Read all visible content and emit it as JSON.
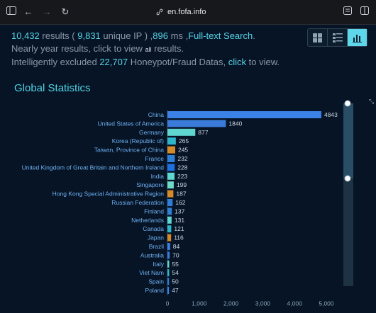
{
  "browser": {
    "url": "en.fofa.info"
  },
  "summary": {
    "results_count": "10,432",
    "results_label": "results (",
    "unique_ip_count": "9,831",
    "unique_ip_label": "unique IP ) ,",
    "time_ms": "896",
    "time_label": "ms ,",
    "search_mode": "Full-text Search",
    "line2_prefix": "Nearly year results, click to view",
    "line2_all": "all",
    "line2_suffix": "results.",
    "line3_prefix": "Intelligently excluded",
    "excluded_count": "22,707",
    "line3_middle": "Honeypot/Fraud Datas,",
    "line3_click": "click",
    "line3_suffix": "to view."
  },
  "section_title": "Global Statistics",
  "chart_data": {
    "type": "bar",
    "orientation": "horizontal",
    "categories": [
      "China",
      "United States of America",
      "Germany",
      "Korea (Republic of)",
      "Taiwan, Province of China",
      "France",
      "United Kingdom of Great Britain and Northern Ireland",
      "India",
      "Singapore",
      "Hong Kong Special Administrative Region",
      "Russian Federation",
      "Finland",
      "Netherlands",
      "Canada",
      "Japan",
      "Brazil",
      "Australia",
      "Italy",
      "Viet Nam",
      "Spain",
      "Poland"
    ],
    "values": [
      4843,
      1840,
      877,
      265,
      245,
      232,
      228,
      223,
      199,
      187,
      162,
      137,
      131,
      121,
      116,
      84,
      70,
      55,
      54,
      50,
      47
    ],
    "xlim": [
      0,
      5000
    ],
    "xticks": [
      "0",
      "1,000",
      "2,000",
      "3,000",
      "4,000",
      "5,000"
    ],
    "colors": [
      "#3a82e8",
      "#3a7ad9",
      "#5fd6cf",
      "#2fb5c9",
      "#d48a2a",
      "#2e7fd6",
      "#1f6fe0",
      "#5fd6cf",
      "#6fd8c8",
      "#d48a2a",
      "#2f7fd9",
      "#2e7fd6",
      "#5fd6cf",
      "#2fb5c9",
      "#d48a2a",
      "#3a82e8",
      "#3a7ad9",
      "#5fd6cf",
      "#2fb5c9",
      "#2e7fd6",
      "#3a82e8"
    ]
  }
}
